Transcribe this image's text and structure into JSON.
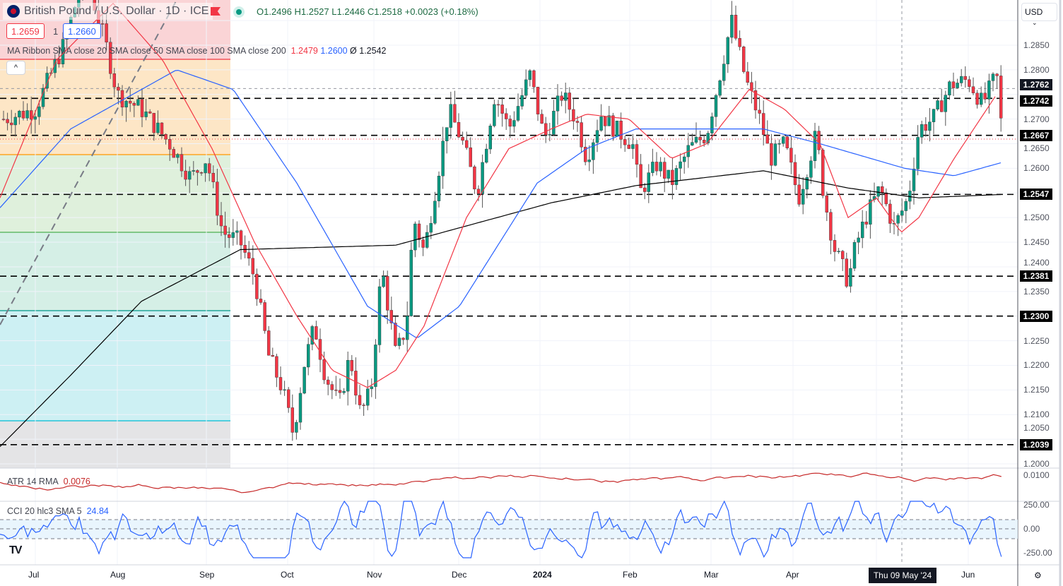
{
  "header": {
    "symbol": "British Pound / U.S. Dollar · 1D · ICE",
    "ohlc": "O1.2496  H1.2527  L1.2446  C1.2518  +0.0023 (+0.18%)",
    "sell_price": "1.2659",
    "spread": "1",
    "buy_price": "1.2660"
  },
  "indicators": {
    "ribbon_label": "MA Ribbon SMA close 20 SMA close 50 SMA close 100 SMA close 200",
    "ribbon_v1": "1.2479",
    "ribbon_v2": "1.2600",
    "ribbon_v3": "Ø 1.2542",
    "atr_label": "ATR 14 RMA",
    "atr_value": "0.0076",
    "cci_label": "CCI 20 hlc3 SMA 5",
    "cci_value": "24.84"
  },
  "currency": "USD",
  "price_axis": [
    "1.2850",
    "1.2800",
    "1.2700",
    "1.2650",
    "1.2600",
    "1.2500",
    "1.2450",
    "1.2400",
    "1.2350",
    "1.2250",
    "1.2200",
    "1.2150",
    "1.2100",
    "1.2050",
    "1.2000"
  ],
  "level_tags": [
    "1.2762",
    "1.2742",
    "1.2667",
    "1.2547",
    "1.2381",
    "1.2300",
    "1.2039"
  ],
  "atr_axis": "0.0100",
  "cci_axis": [
    "250.00",
    "0.00",
    "-250.00"
  ],
  "time_axis": [
    "Jul",
    "Aug",
    "Sep",
    "Oct",
    "Nov",
    "Dec",
    "2024",
    "Feb",
    "Mar",
    "Apr",
    "Jun"
  ],
  "crosshair_date": "Thu 09 May '24",
  "colors": {
    "up": "#089981",
    "down": "#f23645",
    "sma20": "#f23645",
    "sma50": "#2962ff",
    "sma200": "#000000",
    "atr": "#c62828",
    "cci": "#2962ff"
  }
}
